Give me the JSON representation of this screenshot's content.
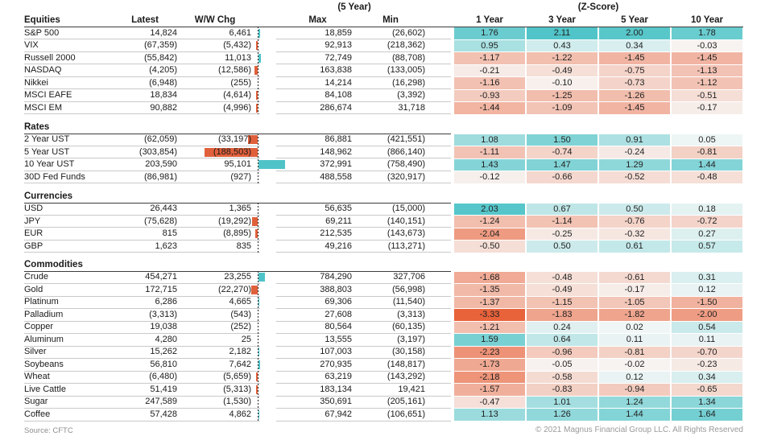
{
  "footer": {
    "source": "Source: CFTC",
    "copyright": "© 2021 Magnus Financial Group LLC. All Rights Reserved"
  },
  "colors": {
    "zscore_positive_max": "#49c2c6",
    "zscore_near_zero_pos": "#f2f6f6",
    "zscore_near_zero_neg": "#f7f4f2",
    "zscore_negative_max": "#e85f36",
    "bar_positive": "#4fc3c8",
    "bar_negative": "#e0603b",
    "rule_dark": "#3c3c3c",
    "rule_light": "#c9c9c9"
  },
  "chart_data": {
    "type": "table",
    "title": "",
    "column_groups": [
      "(5 Year)",
      "(Z-Score)"
    ],
    "columns": [
      "Latest",
      "W/W Chg",
      "Max",
      "Min",
      "1 Year",
      "3 Year",
      "5 Year",
      "10 Year"
    ],
    "legend_note": "Z-score cells shaded on diverging teal(positive)/red(negative) scale; W/W Chg bars plotted against dashed zero axis",
    "sections": [
      {
        "label": "Equities",
        "rows": [
          {
            "name": "S&P 500",
            "latest": "14,824",
            "wow": "6,461",
            "wow_value": 6461,
            "max": "18,859",
            "min": "(26,602)",
            "zscores": [
              1.76,
              2.11,
              2.0,
              1.78
            ]
          },
          {
            "name": "VIX",
            "latest": "(67,359)",
            "wow": "(5,432)",
            "wow_value": -5432,
            "max": "92,913",
            "min": "(218,362)",
            "zscores": [
              0.95,
              0.43,
              0.34,
              -0.03
            ]
          },
          {
            "name": "Russell 2000",
            "latest": "(55,842)",
            "wow": "11,013",
            "wow_value": 11013,
            "max": "72,749",
            "min": "(88,708)",
            "zscores": [
              -1.17,
              -1.22,
              -1.45,
              -1.45
            ]
          },
          {
            "name": "NASDAQ",
            "latest": "(4,205)",
            "wow": "(12,586)",
            "wow_value": -12586,
            "max": "163,838",
            "min": "(133,005)",
            "zscores": [
              -0.21,
              -0.49,
              -0.75,
              -1.13
            ]
          },
          {
            "name": "Nikkei",
            "latest": "(6,948)",
            "wow": "(255)",
            "wow_value": -255,
            "max": "14,214",
            "min": "(16,298)",
            "zscores": [
              -1.16,
              -0.1,
              -0.73,
              -1.12
            ]
          },
          {
            "name": "MSCI EAFE",
            "latest": "18,834",
            "wow": "(4,614)",
            "wow_value": -4614,
            "max": "84,108",
            "min": "(3,392)",
            "zscores": [
              -0.93,
              -1.25,
              -1.26,
              -0.51
            ]
          },
          {
            "name": "MSCI EM",
            "latest": "90,882",
            "wow": "(4,996)",
            "wow_value": -4996,
            "max": "286,674",
            "min": "31,718",
            "zscores": [
              -1.44,
              -1.09,
              -1.45,
              -0.17
            ]
          }
        ]
      },
      {
        "label": "Rates",
        "rows": [
          {
            "name": "2 Year UST",
            "latest": "(62,059)",
            "wow": "(33,197)",
            "wow_value": -33197,
            "max": "86,881",
            "min": "(421,551)",
            "zscores": [
              1.08,
              1.5,
              0.91,
              0.05
            ]
          },
          {
            "name": "5 Year UST",
            "latest": "(303,854)",
            "wow": "(188,503)",
            "wow_value": -188503,
            "max": "148,962",
            "min": "(866,140)",
            "zscores": [
              -1.11,
              -0.74,
              -0.24,
              -0.81
            ]
          },
          {
            "name": "10 Year UST",
            "latest": "203,590",
            "wow": "95,101",
            "wow_value": 95101,
            "max": "372,991",
            "min": "(758,490)",
            "zscores": [
              1.43,
              1.47,
              1.29,
              1.44
            ]
          },
          {
            "name": "30D Fed Funds",
            "latest": "(86,981)",
            "wow": "(927)",
            "wow_value": -927,
            "max": "488,558",
            "min": "(320,917)",
            "zscores": [
              -0.12,
              -0.66,
              -0.52,
              -0.48
            ]
          }
        ]
      },
      {
        "label": "Currencies",
        "rows": [
          {
            "name": "USD",
            "latest": "26,443",
            "wow": "1,365",
            "wow_value": 1365,
            "max": "56,635",
            "min": "(15,000)",
            "zscores": [
              2.03,
              0.67,
              0.5,
              0.18
            ]
          },
          {
            "name": "JPY",
            "latest": "(75,628)",
            "wow": "(19,292)",
            "wow_value": -19292,
            "max": "69,211",
            "min": "(140,151)",
            "zscores": [
              -1.24,
              -1.14,
              -0.76,
              -0.72
            ]
          },
          {
            "name": "EUR",
            "latest": "815",
            "wow": "(8,895)",
            "wow_value": -8895,
            "max": "212,535",
            "min": "(143,673)",
            "zscores": [
              -2.04,
              -0.25,
              -0.32,
              0.27
            ]
          },
          {
            "name": "GBP",
            "latest": "1,623",
            "wow": "835",
            "wow_value": 835,
            "max": "49,216",
            "min": "(113,271)",
            "zscores": [
              -0.5,
              0.5,
              0.61,
              0.57
            ]
          }
        ]
      },
      {
        "label": "Commodities",
        "rows": [
          {
            "name": "Crude",
            "latest": "454,271",
            "wow": "23,255",
            "wow_value": 23255,
            "max": "784,290",
            "min": "327,706",
            "zscores": [
              -1.68,
              -0.48,
              -0.61,
              0.31
            ]
          },
          {
            "name": "Gold",
            "latest": "172,715",
            "wow": "(22,270)",
            "wow_value": -22270,
            "max": "388,803",
            "min": "(56,998)",
            "zscores": [
              -1.35,
              -0.49,
              -0.17,
              0.12
            ]
          },
          {
            "name": "Platinum",
            "latest": "6,286",
            "wow": "4,665",
            "wow_value": 4665,
            "max": "69,306",
            "min": "(11,540)",
            "zscores": [
              -1.37,
              -1.15,
              -1.05,
              -1.5
            ]
          },
          {
            "name": "Palladium",
            "latest": "(3,313)",
            "wow": "(543)",
            "wow_value": -543,
            "max": "27,608",
            "min": "(3,313)",
            "zscores": [
              -3.33,
              -1.83,
              -1.82,
              -2.0
            ]
          },
          {
            "name": "Copper",
            "latest": "19,038",
            "wow": "(252)",
            "wow_value": -252,
            "max": "80,564",
            "min": "(60,135)",
            "zscores": [
              -1.21,
              0.24,
              0.02,
              0.54
            ]
          },
          {
            "name": "Aluminum",
            "latest": "4,280",
            "wow": "25",
            "wow_value": 25,
            "max": "13,555",
            "min": "(3,197)",
            "zscores": [
              1.59,
              0.64,
              0.11,
              0.11
            ]
          },
          {
            "name": "Silver",
            "latest": "15,262",
            "wow": "2,182",
            "wow_value": 2182,
            "max": "107,003",
            "min": "(30,158)",
            "zscores": [
              -2.23,
              -0.96,
              -0.81,
              -0.7
            ]
          },
          {
            "name": "Soybeans",
            "latest": "56,810",
            "wow": "7,642",
            "wow_value": 7642,
            "max": "270,935",
            "min": "(148,817)",
            "zscores": [
              -1.73,
              -0.05,
              -0.02,
              -0.23
            ]
          },
          {
            "name": "Wheat",
            "latest": "(6,480)",
            "wow": "(5,659)",
            "wow_value": -5659,
            "max": "63,219",
            "min": "(143,292)",
            "zscores": [
              -2.18,
              -0.58,
              0.12,
              0.34
            ]
          },
          {
            "name": "Live Cattle",
            "latest": "51,419",
            "wow": "(5,313)",
            "wow_value": -5313,
            "max": "183,134",
            "min": "19,421",
            "zscores": [
              -1.57,
              -0.83,
              -0.94,
              -0.65
            ]
          },
          {
            "name": "Sugar",
            "latest": "247,589",
            "wow": "(1,530)",
            "wow_value": -1530,
            "max": "350,691",
            "min": "(205,161)",
            "zscores": [
              -0.47,
              1.01,
              1.24,
              1.34
            ]
          },
          {
            "name": "Coffee",
            "latest": "57,428",
            "wow": "4,862",
            "wow_value": 4862,
            "max": "67,942",
            "min": "(106,651)",
            "zscores": [
              1.13,
              1.26,
              1.44,
              1.64
            ]
          }
        ]
      }
    ]
  }
}
